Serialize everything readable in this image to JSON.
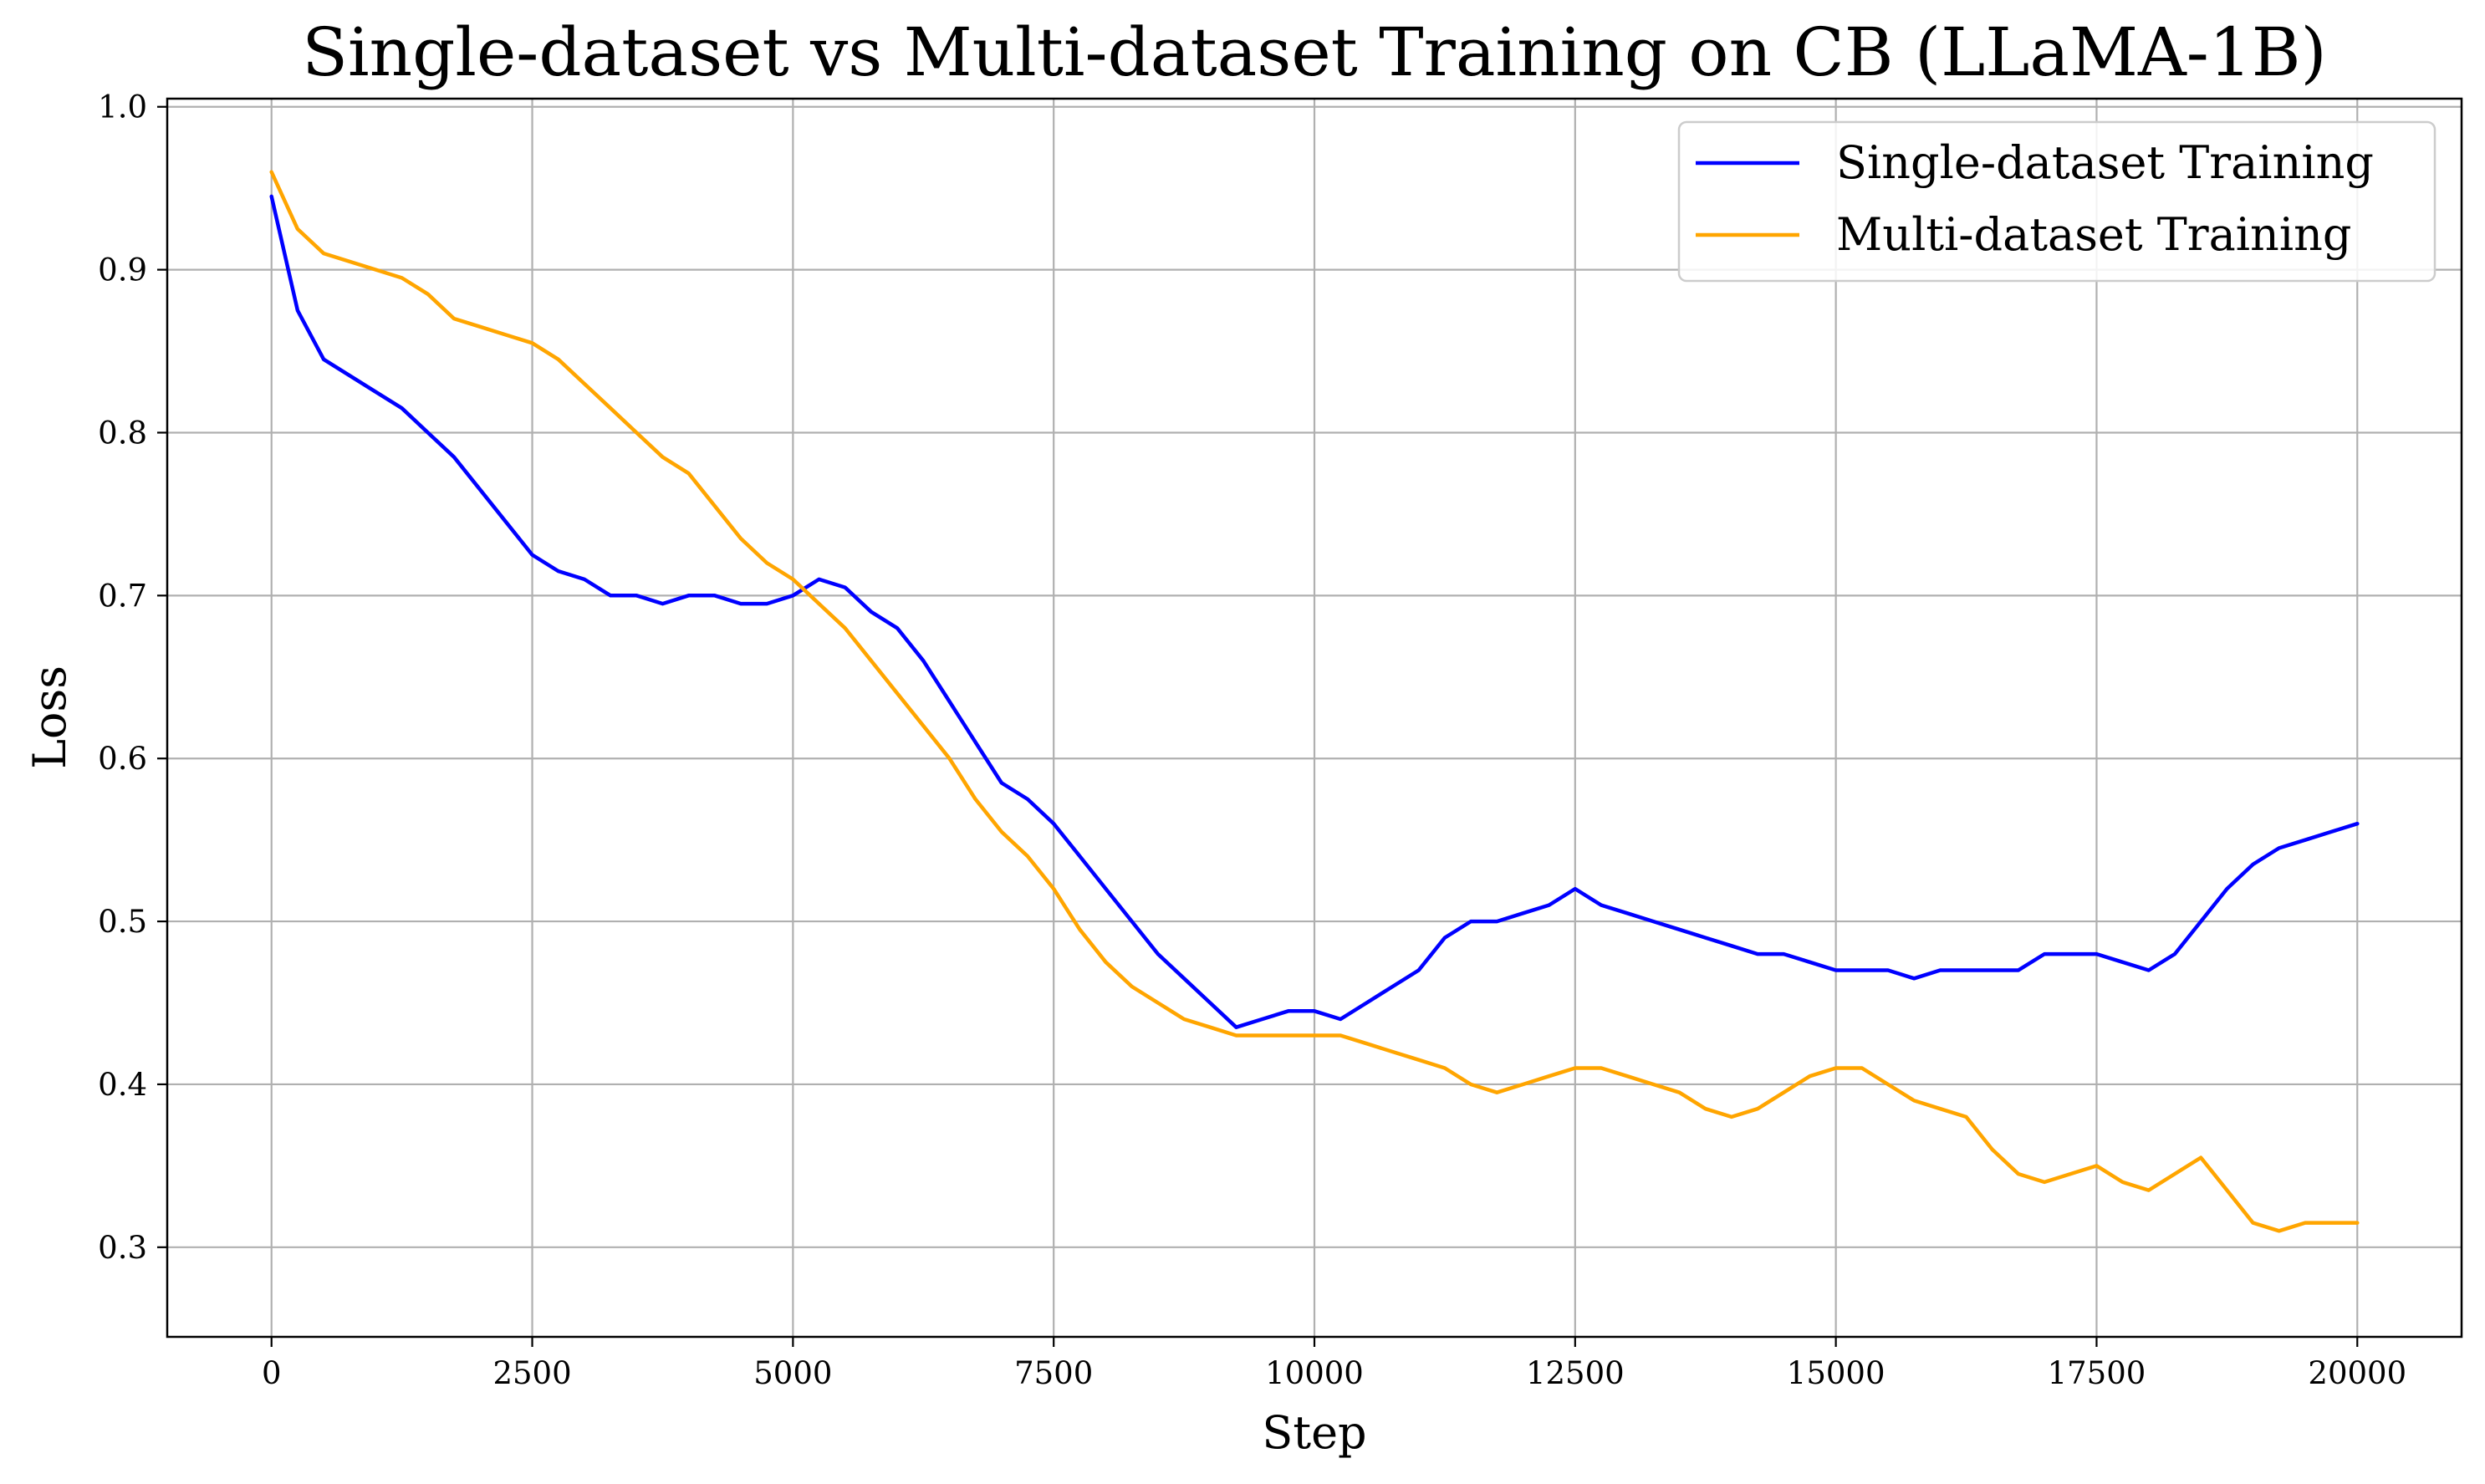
{
  "chart_data": {
    "type": "line",
    "title": "Single-dataset vs Multi-dataset Training on CB (LLaMA-1B)",
    "xlabel": "Step",
    "ylabel": "Loss",
    "xlim": [
      -1000,
      21000
    ],
    "ylim": [
      0.245,
      1.005
    ],
    "grid": true,
    "legend_position": "top-right",
    "x_ticks": [
      0,
      2500,
      5000,
      7500,
      10000,
      12500,
      15000,
      17500,
      20000
    ],
    "x_tick_labels": [
      "0",
      "2500",
      "5000",
      "7500",
      "10000",
      "12500",
      "15000",
      "17500",
      "20000"
    ],
    "y_ticks": [
      0.3,
      0.4,
      0.5,
      0.6,
      0.7,
      0.8,
      0.9,
      1.0
    ],
    "y_tick_labels": [
      "0.3",
      "0.4",
      "0.5",
      "0.6",
      "0.7",
      "0.8",
      "0.9",
      "1.0"
    ],
    "series": [
      {
        "name": "Single-dataset Training",
        "color": "#0000ff",
        "x": [
          0,
          250,
          500,
          750,
          1000,
          1250,
          1500,
          1750,
          2000,
          2250,
          2500,
          2750,
          3000,
          3250,
          3500,
          3750,
          4000,
          4250,
          4500,
          4750,
          5000,
          5250,
          5500,
          5750,
          6000,
          6250,
          6500,
          6750,
          7000,
          7250,
          7500,
          7750,
          8000,
          8250,
          8500,
          8750,
          9000,
          9250,
          9500,
          9750,
          10000,
          10250,
          10500,
          10750,
          11000,
          11250,
          11500,
          11750,
          12000,
          12250,
          12500,
          12750,
          13000,
          13250,
          13500,
          13750,
          14000,
          14250,
          14500,
          14750,
          15000,
          15250,
          15500,
          15750,
          16000,
          16250,
          16500,
          16750,
          17000,
          17250,
          17500,
          17750,
          18000,
          18250,
          18500,
          18750,
          19000,
          19250,
          19500,
          19750,
          20000
        ],
        "values": [
          0.945,
          0.875,
          0.845,
          0.835,
          0.825,
          0.815,
          0.8,
          0.785,
          0.765,
          0.745,
          0.725,
          0.715,
          0.71,
          0.7,
          0.7,
          0.695,
          0.7,
          0.7,
          0.695,
          0.695,
          0.7,
          0.71,
          0.705,
          0.69,
          0.68,
          0.66,
          0.635,
          0.61,
          0.585,
          0.575,
          0.56,
          0.54,
          0.52,
          0.5,
          0.48,
          0.465,
          0.45,
          0.435,
          0.44,
          0.445,
          0.445,
          0.44,
          0.45,
          0.46,
          0.47,
          0.49,
          0.5,
          0.5,
          0.505,
          0.51,
          0.52,
          0.51,
          0.505,
          0.5,
          0.495,
          0.49,
          0.485,
          0.48,
          0.48,
          0.475,
          0.47,
          0.47,
          0.47,
          0.465,
          0.47,
          0.47,
          0.47,
          0.47,
          0.48,
          0.48,
          0.48,
          0.475,
          0.47,
          0.48,
          0.5,
          0.52,
          0.535,
          0.545,
          0.55,
          0.555,
          0.56
        ]
      },
      {
        "name": "Multi-dataset Training",
        "color": "#ffa500",
        "x": [
          0,
          250,
          500,
          750,
          1000,
          1250,
          1500,
          1750,
          2000,
          2250,
          2500,
          2750,
          3000,
          3250,
          3500,
          3750,
          4000,
          4250,
          4500,
          4750,
          5000,
          5250,
          5500,
          5750,
          6000,
          6250,
          6500,
          6750,
          7000,
          7250,
          7500,
          7750,
          8000,
          8250,
          8500,
          8750,
          9000,
          9250,
          9500,
          9750,
          10000,
          10250,
          10500,
          10750,
          11000,
          11250,
          11500,
          11750,
          12000,
          12250,
          12500,
          12750,
          13000,
          13250,
          13500,
          13750,
          14000,
          14250,
          14500,
          14750,
          15000,
          15250,
          15500,
          15750,
          16000,
          16250,
          16500,
          16750,
          17000,
          17250,
          17500,
          17750,
          18000,
          18250,
          18500,
          18750,
          19000,
          19250,
          19500,
          19750,
          20000
        ],
        "values": [
          0.96,
          0.925,
          0.91,
          0.905,
          0.9,
          0.895,
          0.885,
          0.87,
          0.865,
          0.86,
          0.855,
          0.845,
          0.83,
          0.815,
          0.8,
          0.785,
          0.775,
          0.755,
          0.735,
          0.72,
          0.71,
          0.695,
          0.68,
          0.66,
          0.64,
          0.62,
          0.6,
          0.575,
          0.555,
          0.54,
          0.52,
          0.495,
          0.475,
          0.46,
          0.45,
          0.44,
          0.435,
          0.43,
          0.43,
          0.43,
          0.43,
          0.43,
          0.425,
          0.42,
          0.415,
          0.41,
          0.4,
          0.395,
          0.4,
          0.405,
          0.41,
          0.41,
          0.405,
          0.4,
          0.395,
          0.385,
          0.38,
          0.385,
          0.395,
          0.405,
          0.41,
          0.41,
          0.4,
          0.39,
          0.385,
          0.38,
          0.36,
          0.345,
          0.34,
          0.345,
          0.35,
          0.34,
          0.335,
          0.345,
          0.355,
          0.335,
          0.315,
          0.31,
          0.315,
          0.315,
          0.315
        ]
      }
    ]
  }
}
